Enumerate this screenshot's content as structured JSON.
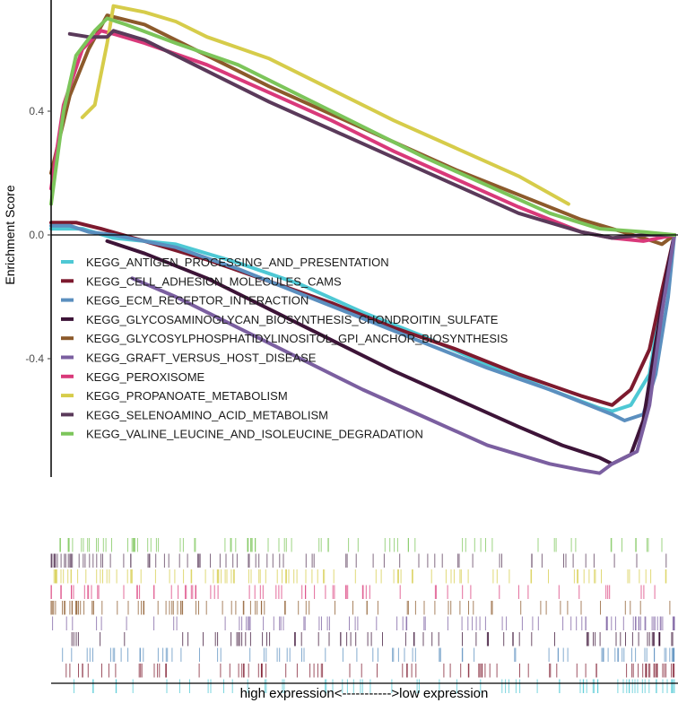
{
  "chart_data": {
    "type": "line",
    "ylabel": "Enrichment Score",
    "xlabel": "high expression<----------->low expression",
    "yticks": [
      -0.4,
      0.0,
      0.4
    ],
    "ylim": [
      -0.8,
      0.75
    ],
    "xlim": [
      0,
      1
    ],
    "zero_line": true,
    "legend_position": "center-left",
    "series": [
      {
        "name": "KEGG_ANTIGEN_PROCESSING_AND_PRESENTATION",
        "color": "#4ec8d4",
        "x": [
          0.0,
          0.05,
          0.1,
          0.2,
          0.3,
          0.4,
          0.5,
          0.6,
          0.7,
          0.8,
          0.88,
          0.9,
          0.93,
          0.96,
          0.98,
          1.0
        ],
        "y": [
          0.02,
          0.02,
          -0.01,
          -0.03,
          -0.09,
          -0.16,
          -0.25,
          -0.33,
          -0.42,
          -0.5,
          -0.56,
          -0.57,
          -0.55,
          -0.45,
          -0.2,
          0.0
        ]
      },
      {
        "name": "KEGG_CELL_ADHESION_MOLECULES_CAMS",
        "color": "#7d1a2e",
        "x": [
          0.0,
          0.04,
          0.08,
          0.15,
          0.25,
          0.35,
          0.45,
          0.55,
          0.65,
          0.75,
          0.85,
          0.9,
          0.93,
          0.96,
          0.98,
          1.0
        ],
        "y": [
          0.04,
          0.04,
          0.02,
          -0.02,
          -0.08,
          -0.15,
          -0.22,
          -0.3,
          -0.37,
          -0.45,
          -0.52,
          -0.55,
          -0.5,
          -0.37,
          -0.18,
          0.0
        ]
      },
      {
        "name": "KEGG_ECM_RECEPTOR_INTERACTION",
        "color": "#5b8fbf",
        "x": [
          0.0,
          0.03,
          0.06,
          0.1,
          0.2,
          0.3,
          0.4,
          0.5,
          0.6,
          0.7,
          0.8,
          0.9,
          0.92,
          0.95,
          0.97,
          0.99,
          1.0
        ],
        "y": [
          0.03,
          0.03,
          0.01,
          0.0,
          -0.04,
          -0.11,
          -0.19,
          -0.27,
          -0.35,
          -0.43,
          -0.5,
          -0.58,
          -0.6,
          -0.58,
          -0.45,
          -0.2,
          0.0
        ]
      },
      {
        "name": "KEGG_GLYCOSAMINOGLYCAN_BIOSYNTHESIS_CHONDROITIN_SULFATE",
        "color": "#3d1438",
        "x": [
          0.09,
          0.15,
          0.25,
          0.35,
          0.45,
          0.55,
          0.65,
          0.75,
          0.82,
          0.88,
          0.9,
          0.93,
          0.95,
          0.97,
          0.99,
          1.0
        ],
        "y": [
          -0.02,
          -0.06,
          -0.14,
          -0.24,
          -0.34,
          -0.44,
          -0.53,
          -0.62,
          -0.68,
          -0.72,
          -0.74,
          -0.71,
          -0.6,
          -0.35,
          -0.1,
          0.0
        ]
      },
      {
        "name": "KEGG_GLYCOSYLPHOSPHATIDYLINOSITOL_GPI_ANCHOR_BIOSYNTHESIS",
        "color": "#8c5a2b",
        "x": [
          0.0,
          0.03,
          0.06,
          0.09,
          0.15,
          0.25,
          0.35,
          0.45,
          0.55,
          0.65,
          0.75,
          0.85,
          0.9,
          0.95,
          0.98,
          1.0
        ],
        "y": [
          0.2,
          0.45,
          0.6,
          0.71,
          0.68,
          0.58,
          0.48,
          0.39,
          0.3,
          0.21,
          0.13,
          0.05,
          0.02,
          -0.01,
          -0.03,
          0.0
        ]
      },
      {
        "name": "KEGG_GRAFT_VERSUS_HOST_DISEASE",
        "color": "#7b5fa0",
        "x": [
          0.13,
          0.2,
          0.3,
          0.4,
          0.5,
          0.6,
          0.7,
          0.8,
          0.85,
          0.88,
          0.9,
          0.92,
          0.94,
          0.96,
          0.98,
          1.0
        ],
        "y": [
          -0.14,
          -0.2,
          -0.3,
          -0.4,
          -0.5,
          -0.59,
          -0.68,
          -0.74,
          -0.76,
          -0.77,
          -0.74,
          -0.72,
          -0.7,
          -0.55,
          -0.25,
          0.0
        ]
      },
      {
        "name": "KEGG_PEROXISOME",
        "color": "#d9397a",
        "x": [
          0.0,
          0.02,
          0.05,
          0.08,
          0.1,
          0.15,
          0.25,
          0.35,
          0.45,
          0.55,
          0.65,
          0.75,
          0.85,
          0.9,
          0.95,
          1.0
        ],
        "y": [
          0.15,
          0.42,
          0.6,
          0.66,
          0.65,
          0.62,
          0.55,
          0.46,
          0.37,
          0.27,
          0.18,
          0.09,
          0.01,
          -0.01,
          -0.02,
          0.0
        ]
      },
      {
        "name": "KEGG_PROPANOATE_METABOLISM",
        "color": "#d6cc4a",
        "x": [
          0.05,
          0.07,
          0.09,
          0.1,
          0.15,
          0.2,
          0.25,
          0.35,
          0.45,
          0.55,
          0.65,
          0.75,
          0.83
        ],
        "y": [
          0.38,
          0.42,
          0.62,
          0.74,
          0.72,
          0.69,
          0.64,
          0.57,
          0.47,
          0.37,
          0.28,
          0.19,
          0.1
        ]
      },
      {
        "name": "KEGG_SELENOAMINO_ACID_METABOLISM",
        "color": "#5a3a5a",
        "x": [
          0.03,
          0.06,
          0.09,
          0.1,
          0.15,
          0.25,
          0.35,
          0.45,
          0.55,
          0.65,
          0.75,
          0.85,
          0.9,
          0.95,
          1.0
        ],
        "y": [
          0.65,
          0.64,
          0.64,
          0.66,
          0.63,
          0.53,
          0.43,
          0.34,
          0.25,
          0.16,
          0.07,
          0.01,
          -0.01,
          0.0,
          0.0
        ]
      },
      {
        "name": "KEGG_VALINE_LEUCINE_AND_ISOLEUCINE_DEGRADATION",
        "color": "#7cc55a",
        "x": [
          0.0,
          0.02,
          0.04,
          0.07,
          0.09,
          0.12,
          0.2,
          0.3,
          0.4,
          0.5,
          0.6,
          0.7,
          0.8,
          0.88,
          0.95,
          1.0
        ],
        "y": [
          0.1,
          0.4,
          0.58,
          0.66,
          0.7,
          0.68,
          0.62,
          0.55,
          0.45,
          0.35,
          0.25,
          0.16,
          0.07,
          0.02,
          0.01,
          0.0
        ]
      }
    ]
  }
}
